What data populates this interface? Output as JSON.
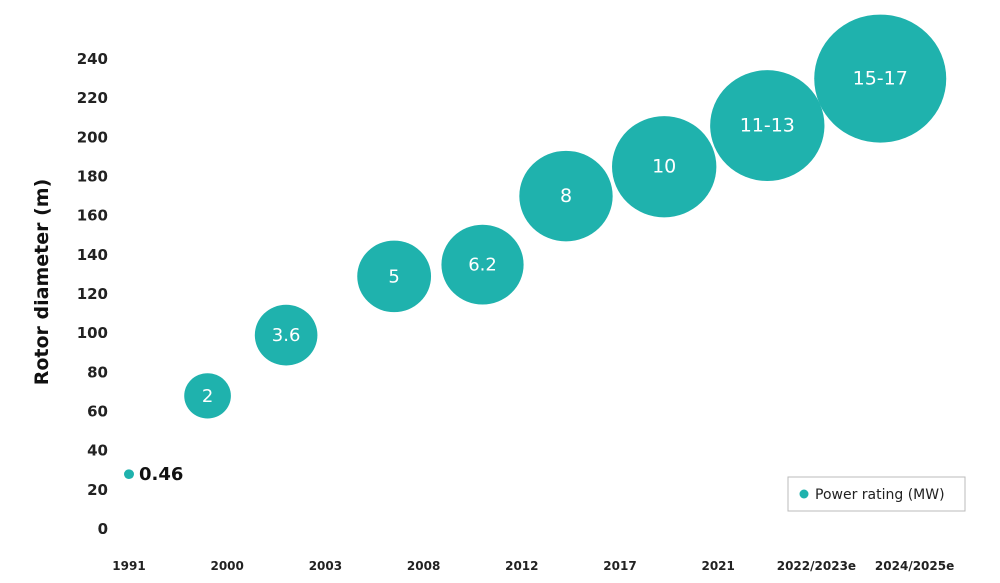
{
  "chart_data": {
    "type": "bubble",
    "xlabel": "",
    "ylabel": "Rotor diameter (m)",
    "ylim": [
      0,
      240
    ],
    "yticks": [
      0,
      20,
      40,
      60,
      80,
      100,
      120,
      140,
      160,
      180,
      200,
      220,
      240
    ],
    "categories": [
      "1991",
      "2000",
      "2003",
      "2008",
      "2012",
      "2017",
      "2021",
      "2022/2023e",
      "2024/2025e"
    ],
    "series": [
      {
        "name": "Power rating (MW)",
        "color": "#1fb2ad",
        "points": [
          {
            "x": 0.0,
            "y": 28,
            "label": "0.46",
            "size": 0.46
          },
          {
            "x": 0.8,
            "y": 68,
            "label": "2",
            "size": 2
          },
          {
            "x": 1.6,
            "y": 99,
            "label": "3.6",
            "size": 3.6
          },
          {
            "x": 2.7,
            "y": 129,
            "label": "5",
            "size": 5
          },
          {
            "x": 3.6,
            "y": 135,
            "label": "6.2",
            "size": 6.2
          },
          {
            "x": 4.45,
            "y": 170,
            "label": "8",
            "size": 8
          },
          {
            "x": 5.45,
            "y": 185,
            "label": "10",
            "size": 10
          },
          {
            "x": 6.5,
            "y": 206,
            "label": "11-13",
            "size": 12
          },
          {
            "x": 7.65,
            "y": 230,
            "label": "15-17",
            "size": 16
          }
        ]
      }
    ],
    "legend": {
      "position": "bottom-right",
      "label": "Power rating (MW)"
    }
  }
}
